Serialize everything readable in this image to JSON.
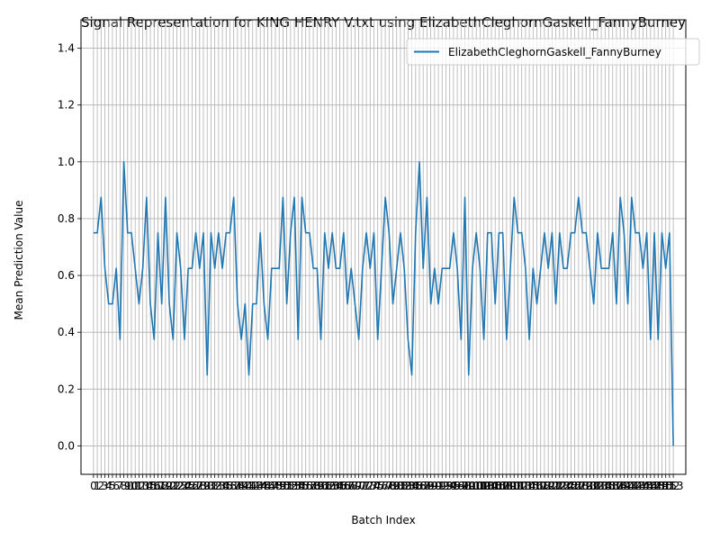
{
  "chart_data": {
    "type": "line",
    "title": "Signal Representation for KING HENRY V.txt using ElizabethCleghornGaskell_FannyBurney",
    "xlabel": "Batch Index",
    "ylabel": "Mean Prediction Value",
    "xlim": [
      -3.3,
      156.3
    ],
    "ylim": [
      -0.1,
      1.5
    ],
    "yticks": [
      0.0,
      0.2,
      0.4,
      0.6,
      0.8,
      1.0,
      1.2,
      1.4
    ],
    "grid": true,
    "legend": "top-right",
    "line_color": "#1f77b4",
    "series": [
      {
        "name": "ElizabethCleghornGaskell_FannyBurney",
        "x": [
          0,
          1,
          2,
          3,
          4,
          5,
          6,
          7,
          8,
          9,
          10,
          11,
          12,
          13,
          14,
          15,
          16,
          17,
          18,
          19,
          20,
          21,
          22,
          23,
          24,
          25,
          26,
          27,
          28,
          29,
          30,
          31,
          32,
          33,
          34,
          35,
          36,
          37,
          38,
          39,
          40,
          41,
          42,
          43,
          44,
          45,
          46,
          47,
          48,
          49,
          50,
          51,
          52,
          53,
          54,
          55,
          56,
          57,
          58,
          59,
          60,
          61,
          62,
          63,
          64,
          65,
          66,
          67,
          68,
          69,
          70,
          71,
          72,
          73,
          74,
          75,
          76,
          77,
          78,
          79,
          80,
          81,
          82,
          83,
          84,
          85,
          86,
          87,
          88,
          89,
          90,
          91,
          92,
          93,
          94,
          95,
          96,
          97,
          98,
          99,
          100,
          101,
          102,
          103,
          104,
          105,
          106,
          107,
          108,
          109,
          110,
          111,
          112,
          113,
          114,
          115,
          116,
          117,
          118,
          119,
          120,
          121,
          122,
          123,
          124,
          125,
          126,
          127,
          128,
          129,
          130,
          131,
          132,
          133,
          134,
          135,
          136,
          137,
          138,
          139,
          140,
          141,
          142,
          143,
          144,
          145,
          146,
          147,
          148,
          149,
          150,
          151,
          152,
          153
        ],
        "values": [
          0.75,
          0.75,
          0.875,
          0.625,
          0.5,
          0.5,
          0.625,
          0.375,
          1.0,
          0.75,
          0.75,
          0.625,
          0.5,
          0.625,
          0.875,
          0.5,
          0.375,
          0.75,
          0.5,
          0.875,
          0.5,
          0.375,
          0.75,
          0.625,
          0.375,
          0.625,
          0.625,
          0.75,
          0.625,
          0.75,
          0.25,
          0.75,
          0.625,
          0.75,
          0.625,
          0.75,
          0.75,
          0.875,
          0.5,
          0.375,
          0.5,
          0.25,
          0.5,
          0.5,
          0.75,
          0.5,
          0.375,
          0.625,
          0.625,
          0.625,
          0.875,
          0.5,
          0.75,
          0.875,
          0.375,
          0.875,
          0.75,
          0.75,
          0.625,
          0.625,
          0.375,
          0.75,
          0.625,
          0.75,
          0.625,
          0.625,
          0.75,
          0.5,
          0.625,
          0.5,
          0.375,
          0.625,
          0.75,
          0.625,
          0.75,
          0.375,
          0.625,
          0.875,
          0.75,
          0.5,
          0.625,
          0.75,
          0.625,
          0.375,
          0.25,
          0.75,
          1.0,
          0.625,
          0.875,
          0.5,
          0.625,
          0.5,
          0.625,
          0.625,
          0.625,
          0.75,
          0.625,
          0.375,
          0.875,
          0.25,
          0.625,
          0.75,
          0.625,
          0.375,
          0.75,
          0.75,
          0.5,
          0.75,
          0.75,
          0.375,
          0.625,
          0.875,
          0.75,
          0.75,
          0.625,
          0.375,
          0.625,
          0.5,
          0.625,
          0.75,
          0.625,
          0.75,
          0.5,
          0.75,
          0.625,
          0.625,
          0.75,
          0.75,
          0.875,
          0.75,
          0.75,
          0.625,
          0.5,
          0.75,
          0.625,
          0.625,
          0.625,
          0.75,
          0.5,
          0.875,
          0.75,
          0.5,
          0.875,
          0.75,
          0.75,
          0.625,
          0.75,
          0.375,
          0.75,
          0.375,
          0.75,
          0.625,
          0.75,
          0.0
        ]
      }
    ]
  }
}
